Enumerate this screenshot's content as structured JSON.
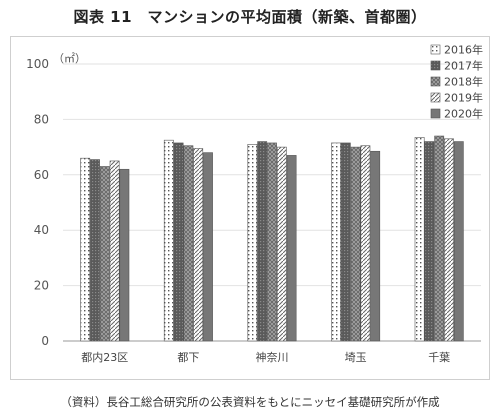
{
  "title": "図表 11　マンションの平均面積（新築、首都圏）",
  "source": "（資料）長谷工総合研究所の公表資料をもとにニッセイ基礎研究所が作成",
  "chart_data": {
    "type": "bar",
    "unit": "（㎡）",
    "categories": [
      "都内23区",
      "都下",
      "神奈川",
      "埼玉",
      "千葉"
    ],
    "series": [
      {
        "name": "2016年",
        "values": [
          66,
          72.5,
          71,
          71.5,
          73.5
        ],
        "fill": "#ffffff",
        "pattern": "dots"
      },
      {
        "name": "2017年",
        "values": [
          65.5,
          71.5,
          72,
          71.5,
          72
        ],
        "fill": "#6a6a6a",
        "pattern": "dense"
      },
      {
        "name": "2018年",
        "values": [
          63,
          70.5,
          71.5,
          70,
          74
        ],
        "fill": "#8a8a8a",
        "pattern": "checker"
      },
      {
        "name": "2019年",
        "values": [
          65,
          69.5,
          70,
          70.5,
          73
        ],
        "fill": "#ffffff",
        "pattern": "diag"
      },
      {
        "name": "2020年",
        "values": [
          62,
          68,
          67,
          68.5,
          72
        ],
        "fill": "#777777",
        "pattern": "solid"
      }
    ],
    "yticks": [
      0,
      20,
      40,
      60,
      80,
      100
    ],
    "ylim": [
      0,
      100
    ],
    "grid": true,
    "legend": "top-right"
  }
}
